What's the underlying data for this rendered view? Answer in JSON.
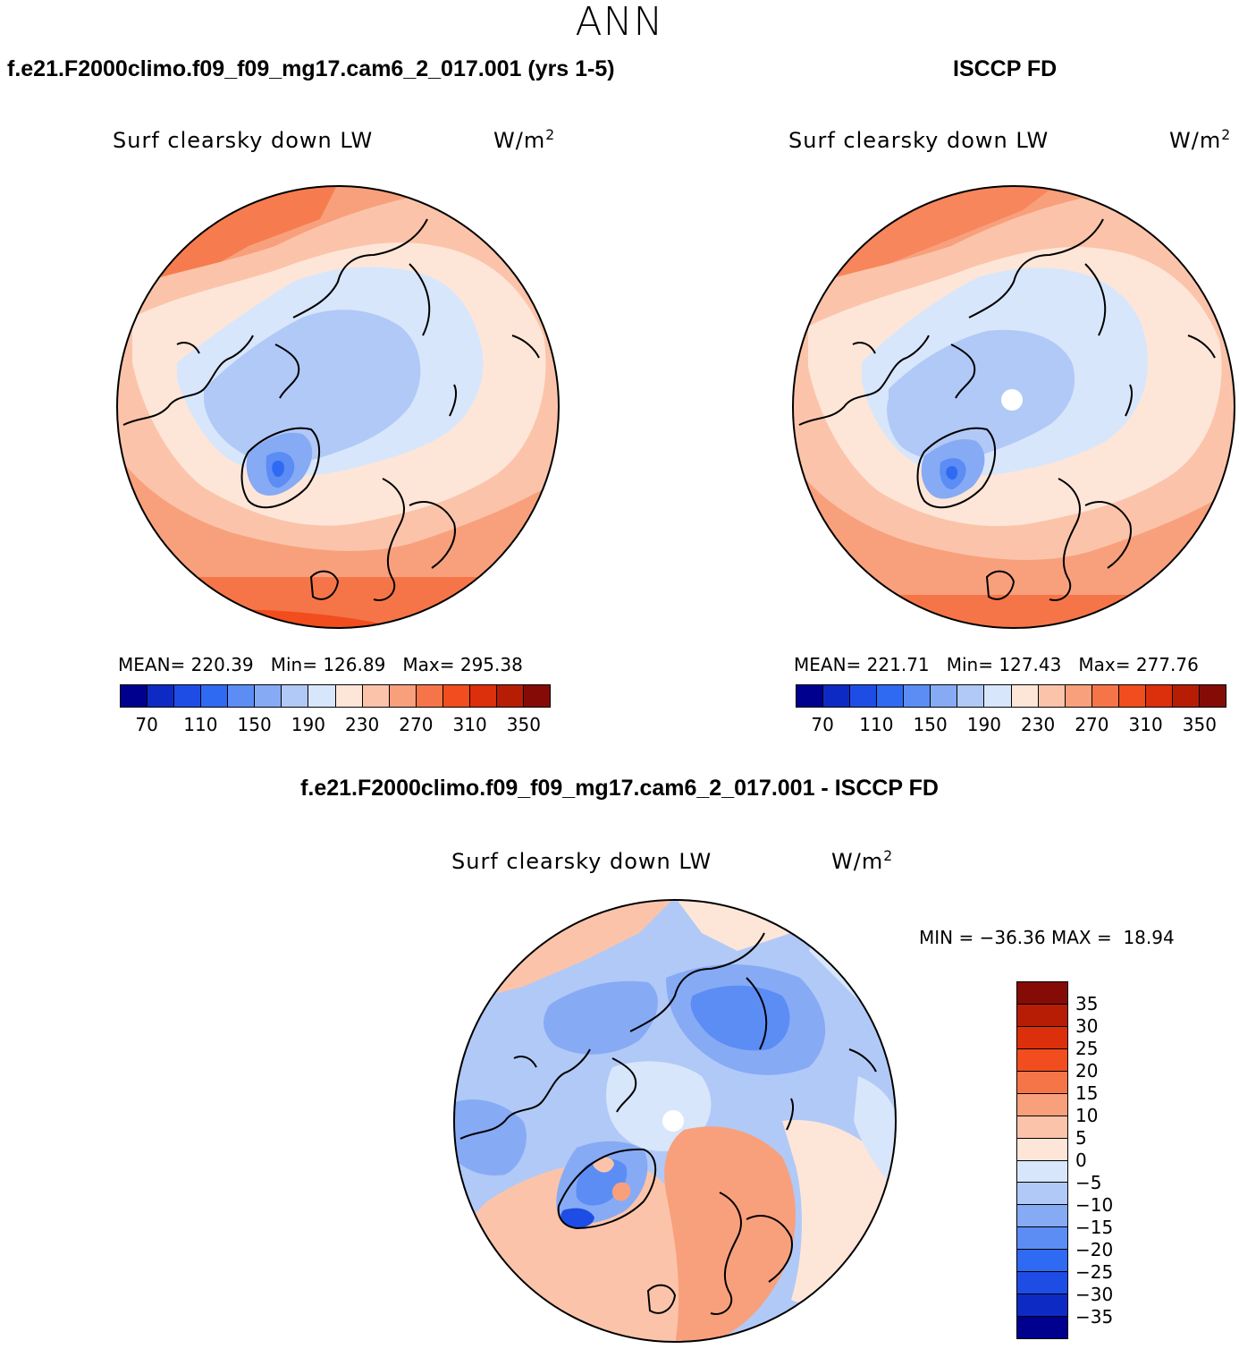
{
  "season": "ANN",
  "panels": [
    {
      "id": "model",
      "header": "f.e21.F2000climo.f09_f09_mg17.cam6_2_017.001 (yrs 1-5)",
      "variable": "Surf clearsky down LW",
      "units_base": "W/m",
      "units_sup": "2",
      "mean_label": "MEAN=",
      "mean": "220.39",
      "min_label": "Min=",
      "min": "126.89",
      "max_label": "Max=",
      "max": "295.38"
    },
    {
      "id": "obs",
      "header": "ISCCP FD",
      "variable": "Surf clearsky down LW",
      "units_base": "W/m",
      "units_sup": "2",
      "mean_label": "MEAN=",
      "mean": "221.71",
      "min_label": "Min=",
      "min": "127.43",
      "max_label": "Max=",
      "max": "277.76"
    }
  ],
  "abs_colorbar": {
    "colors": [
      "#00008e",
      "#0d2bc4",
      "#1e4de6",
      "#2f6af2",
      "#5b8df5",
      "#87aaf5",
      "#b1c9f7",
      "#d8e6fb",
      "#fde6d8",
      "#fbc4aa",
      "#f8a07c",
      "#f67548",
      "#f14d1e",
      "#dc2f0b",
      "#b71d05",
      "#850c06"
    ],
    "labels": [
      "70",
      "110",
      "150",
      "190",
      "230",
      "270",
      "310",
      "350"
    ]
  },
  "diff_panel": {
    "header": "f.e21.F2000climo.f09_f09_mg17.cam6_2_017.001 - ISCCP FD",
    "variable": "Surf clearsky down LW",
    "units_base": "W/m",
    "units_sup": "2",
    "min_label": "MIN =",
    "min": "−36.36",
    "max_label": "MAX =",
    "max": "18.94"
  },
  "diff_colorbar": {
    "colors_top_to_bottom": [
      "#850c06",
      "#b71d05",
      "#dc2f0b",
      "#f14d1e",
      "#f67548",
      "#f8a07c",
      "#fbc4aa",
      "#fde6d8",
      "#d8e6fb",
      "#b1c9f7",
      "#87aaf5",
      "#5b8df5",
      "#2f6af2",
      "#1e4de6",
      "#0d2bc4",
      "#00008e"
    ],
    "labels": [
      "35",
      "30",
      "25",
      "20",
      "15",
      "10",
      "5",
      "0",
      "−5",
      "−10",
      "−15",
      "−20",
      "−25",
      "−30",
      "−35"
    ]
  },
  "colors": {
    "land_outline": "#000000",
    "missing": "#ffffff"
  }
}
